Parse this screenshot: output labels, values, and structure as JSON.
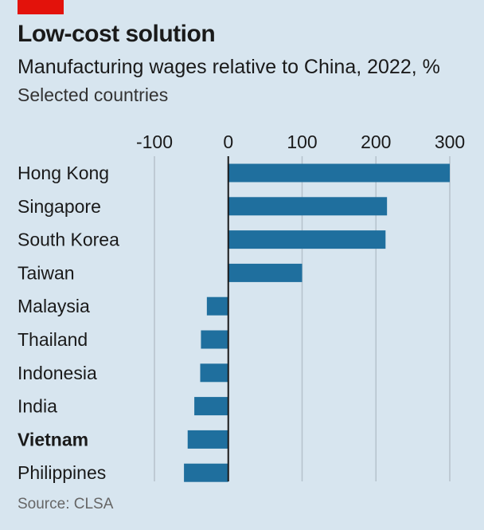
{
  "header": {
    "title": "Low-cost solution",
    "subtitle": "Manufacturing wages relative to China, 2022, %",
    "note": "Selected countries"
  },
  "footer": {
    "source": "Source: CLSA"
  },
  "colors": {
    "background": "#d7e5ef",
    "bar": "#1f6f9e",
    "accent": "#e3120b",
    "grid": "#b5c2cc",
    "zero_line": "#1a1a1a"
  },
  "chart_data": {
    "type": "bar",
    "orientation": "horizontal",
    "title": "Low-cost solution",
    "subtitle": "Manufacturing wages relative to China, 2022, %",
    "categories": [
      "Hong Kong",
      "Singapore",
      "South Korea",
      "Taiwan",
      "Malaysia",
      "Thailand",
      "Indonesia",
      "India",
      "Vietnam",
      "Philippines"
    ],
    "highlighted_category": "Vietnam",
    "values": [
      300,
      215,
      213,
      100,
      -29,
      -37,
      -38,
      -46,
      -55,
      -60
    ],
    "xlim": [
      -100,
      300
    ],
    "xticks": [
      -100,
      0,
      100,
      200,
      300
    ],
    "xtick_labels": [
      "-100",
      "0",
      "100",
      "200",
      "300"
    ],
    "grid": "vertical",
    "xlabel": "",
    "ylabel": ""
  }
}
